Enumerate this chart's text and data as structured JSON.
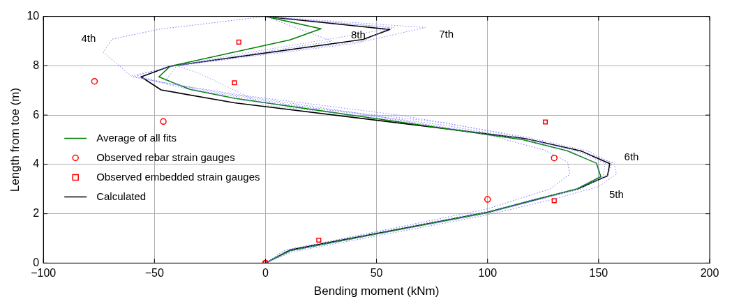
{
  "chart_data": {
    "type": "line",
    "xlabel": "Bending moment (kNm)",
    "ylabel": "Length from toe (m)",
    "xlim": [
      -100,
      200
    ],
    "xticks": [
      -100,
      -50,
      0,
      50,
      100,
      150,
      200
    ],
    "ylim": [
      0,
      10
    ],
    "yticks": [
      0,
      2,
      4,
      6,
      8,
      10
    ],
    "grid": true,
    "legend": "left",
    "series": [
      {
        "name": "4th",
        "color": "#7070ff",
        "line_style": "dotted",
        "x": [
          0,
          8,
          100,
          128,
          137,
          136,
          125,
          100,
          40,
          -20,
          -60,
          -73,
          -69,
          -48,
          0
        ],
        "values": [
          0,
          0.5,
          2.2,
          3.0,
          3.6,
          4.1,
          4.6,
          5.2,
          6.1,
          6.9,
          7.55,
          8.55,
          9.08,
          9.48,
          10
        ]
      },
      {
        "name": "5th",
        "color": "#7878f8",
        "line_style": "dotted",
        "x": [
          0,
          12,
          100,
          130,
          150,
          158,
          157,
          143,
          118,
          80,
          20,
          -35,
          -60,
          -40,
          30,
          0
        ],
        "values": [
          0,
          0.45,
          1.95,
          2.6,
          3.1,
          3.6,
          4.05,
          4.5,
          5.0,
          5.6,
          6.3,
          7.05,
          7.6,
          8.0,
          9.0,
          10
        ]
      },
      {
        "name": "6th",
        "color": "#8080ff",
        "line_style": "dotted",
        "x": [
          0,
          10,
          100,
          122,
          142,
          154,
          156,
          145,
          118,
          60,
          -10,
          -45,
          -58,
          -42,
          44,
          56,
          0
        ],
        "values": [
          0,
          0.55,
          2.1,
          2.6,
          3.05,
          3.55,
          4.05,
          4.55,
          5.1,
          6.0,
          6.8,
          7.3,
          7.6,
          8.0,
          9.0,
          9.55,
          10
        ]
      },
      {
        "name": "7th",
        "color": "#8888ff",
        "line_style": "dotted",
        "x": [
          0,
          12,
          100,
          122,
          142,
          152,
          153,
          140,
          115,
          80,
          30,
          -10,
          -30,
          -45,
          -40,
          40,
          72,
          0
        ],
        "values": [
          0,
          0.5,
          2.05,
          2.55,
          3.0,
          3.5,
          4.05,
          4.55,
          5.1,
          5.7,
          6.2,
          6.6,
          7.0,
          7.4,
          8.0,
          8.9,
          9.55,
          10
        ]
      },
      {
        "name": "8th",
        "color": "#9090f8",
        "line_style": "dotted",
        "x": [
          0,
          10,
          100,
          120,
          140,
          150,
          150,
          138,
          112,
          50,
          0,
          -30,
          -40,
          -10,
          43,
          58,
          0
        ],
        "values": [
          0,
          0.5,
          2.0,
          2.5,
          3.0,
          3.5,
          4.0,
          4.5,
          5.1,
          5.9,
          6.4,
          7.7,
          8.0,
          8.5,
          9.3,
          9.55,
          10
        ]
      },
      {
        "name": "Average of all fits",
        "color": "#008000",
        "line_style": "solid",
        "x": [
          0,
          11,
          100,
          120,
          140,
          151,
          149,
          136,
          116,
          -14,
          -34,
          -48,
          -43,
          11,
          25,
          0
        ],
        "values": [
          0,
          0.5,
          2.05,
          2.55,
          3.0,
          3.5,
          4.05,
          4.55,
          5.0,
          6.68,
          7.04,
          7.55,
          7.98,
          9.05,
          9.5,
          10
        ]
      },
      {
        "name": "Observed rebar strain gauges",
        "type": "scatter",
        "marker": "circle",
        "color": "#ff0000",
        "x": [
          0,
          -77,
          -46,
          130,
          100
        ],
        "values": [
          0,
          7.37,
          5.74,
          4.26,
          2.58
        ]
      },
      {
        "name": "Observed embedded strain gauges",
        "type": "scatter",
        "marker": "square",
        "color": "#ff0000",
        "x": [
          0,
          -12,
          -14,
          126,
          130,
          24
        ],
        "values": [
          0,
          8.96,
          7.31,
          5.72,
          2.53,
          0.93
        ]
      },
      {
        "name": "Calculated",
        "color": "#000000",
        "line_style": "solid",
        "x": [
          0,
          11,
          100,
          120,
          141,
          154,
          155,
          142,
          117,
          -14,
          -47,
          -56,
          -43,
          44,
          56,
          0
        ],
        "values": [
          0,
          0.53,
          2.06,
          2.53,
          3.02,
          3.54,
          4.03,
          4.55,
          5.05,
          6.5,
          7.02,
          7.55,
          7.98,
          9.07,
          9.47,
          10
        ]
      }
    ]
  }
}
